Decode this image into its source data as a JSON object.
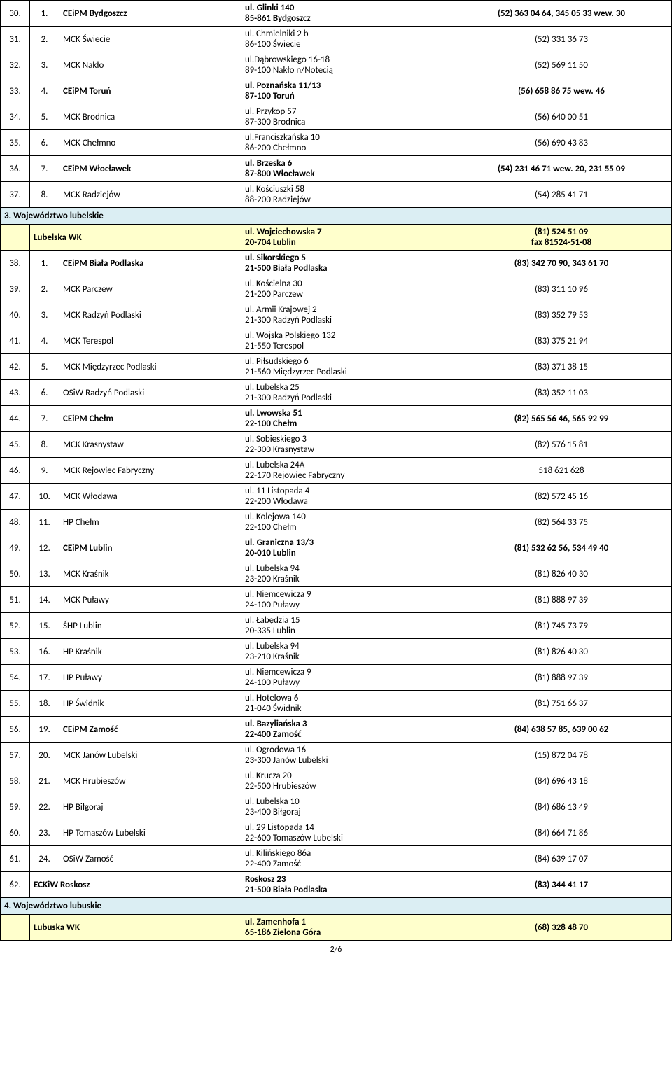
{
  "colors": {
    "section_bg": "#dbeef3",
    "wk_bg": "#ffffcc",
    "border": "#000000",
    "text": "#000000",
    "background": "#ffffff"
  },
  "fontsize": 13,
  "rows_top": [
    {
      "a": "30.",
      "b": "1.",
      "c": "CEiPM Bydgoszcz",
      "d1": "ul. Glinki 140",
      "d2": "85-861 Bydgoszcz",
      "e": "(52) 363 04 64, 345 05 33 wew. 30",
      "bold": true
    },
    {
      "a": "31.",
      "b": "2.",
      "c": "MCK Świecie",
      "d1": "ul. Chmielniki 2 b",
      "d2": "86-100 Świecie",
      "e": "(52) 331 36 73",
      "bold": false
    },
    {
      "a": "32.",
      "b": "3.",
      "c": "MCK Nakło",
      "d1": "ul.Dąbrowskiego 16-18",
      "d2": "89-100 Nakło n/Notecią",
      "e": "(52) 569 11 50",
      "bold": false
    },
    {
      "a": "33.",
      "b": "4.",
      "c": "CEiPM Toruń",
      "d1": "ul. Poznańska 11/13",
      "d2": "87-100 Toruń",
      "e": "(56) 658 86 75 wew. 46",
      "bold": true
    },
    {
      "a": "34.",
      "b": "5.",
      "c": "MCK Brodnica",
      "d1": "ul. Przykop 57",
      "d2": "87-300 Brodnica",
      "e": "(56) 640 00 51",
      "bold": false
    },
    {
      "a": "35.",
      "b": "6.",
      "c": "MCK Chełmno",
      "d1": "ul.Franciszkańska 10",
      "d2": "86-200 Chełmno",
      "e": "(56) 690 43 83",
      "bold": false
    },
    {
      "a": "36.",
      "b": "7.",
      "c": "CEiPM Włocławek",
      "d1": "ul. Brzeska 6",
      "d2": "87-800 Włocławek",
      "e": "(54) 231 46 71 wew. 20, 231 55 09",
      "bold": true
    },
    {
      "a": "37.",
      "b": "8.",
      "c": "MCK Radziejów",
      "d1": "ul. Kościuszki 58",
      "d2": "88-200 Radziejów",
      "e": "(54) 285 41 71",
      "bold": false
    }
  ],
  "section3": {
    "title": "3. Województwo lubelskie",
    "wk": {
      "c": "Lubelska WK",
      "d1": "ul. Wojciechowska 7",
      "d2": "20-704 Lublin",
      "e1": "(81) 524 51 09",
      "e2": "fax 81524-51-08"
    },
    "rows": [
      {
        "a": "38.",
        "b": "1.",
        "c": "CEiPM Biała Podlaska",
        "d1": "ul. Sikorskiego 5",
        "d2": "21-500 Biała Podlaska",
        "e": "(83) 342 70 90, 343 61 70",
        "bold": true
      },
      {
        "a": "39.",
        "b": "2.",
        "c": "MCK Parczew",
        "d1": "ul. Kościelna 30",
        "d2": "21-200 Parczew",
        "e": "(83)  311 10 96",
        "bold": false
      },
      {
        "a": "40.",
        "b": "3.",
        "c": "MCK Radzyń Podlaski",
        "d1": "ul. Armii Krajowej 2",
        "d2": "21-300 Radzyń Podlaski",
        "e": "(83) 352 79 53",
        "bold": false
      },
      {
        "a": "41.",
        "b": "4.",
        "c": "MCK Terespol",
        "d1": "ul. Wojska Polskiego 132",
        "d2": "21-550 Terespol",
        "e": "(83) 375 21 94",
        "bold": false
      },
      {
        "a": "42.",
        "b": "5.",
        "c": "MCK Międzyrzec Podlaski",
        "d1": "ul. Piłsudskiego 6",
        "d2": "21-560 Międzyrzec Podlaski",
        "e": "(83) 371 38 15",
        "bold": false
      },
      {
        "a": "43.",
        "b": "6.",
        "c": "OSiW Radzyń Podlaski",
        "d1": "ul. Lubelska 25",
        "d2": "21-300 Radzyń Podlaski",
        "e": "(83) 352 11 03",
        "bold": false
      },
      {
        "a": "44.",
        "b": "7.",
        "c": "CEiPM Chełm",
        "d1": "ul. Lwowska 51",
        "d2": "22-100 Chełm",
        "e": "(82) 565 56 46, 565 92 99",
        "bold": true
      },
      {
        "a": "45.",
        "b": "8.",
        "c": "MCK Krasnystaw",
        "d1": "ul. Sobieskiego 3",
        "d2": "22-300 Krasnystaw",
        "e": "(82) 576 15 81",
        "bold": false
      },
      {
        "a": "46.",
        "b": "9.",
        "c": "MCK Rejowiec Fabryczny",
        "d1": "ul. Lubelska 24A",
        "d2": "22-170 Rejowiec Fabryczny",
        "e": "518 621 628",
        "bold": false
      },
      {
        "a": "47.",
        "b": "10.",
        "c": "MCK Włodawa",
        "d1": "ul. 11 Listopada 4",
        "d2": "22-200 Włodawa",
        "e": "(82) 572 45 16",
        "bold": false
      },
      {
        "a": "48.",
        "b": "11.",
        "c": "HP Chełm",
        "d1": "ul. Kolejowa 140",
        "d2": "22-100 Chełm",
        "e": "(82) 564 33 75",
        "bold": false
      },
      {
        "a": "49.",
        "b": "12.",
        "c": "CEiPM Lublin",
        "d1": "ul. Graniczna 13/3",
        "d2": "20-010 Lublin",
        "e": "(81) 532 62 56, 534 49 40",
        "bold": true
      },
      {
        "a": "50.",
        "b": "13.",
        "c": "MCK Kraśnik",
        "d1": "ul. Lubelska 94",
        "d2": "23-200 Kraśnik",
        "e": "(81) 826 40 30",
        "bold": false
      },
      {
        "a": "51.",
        "b": "14.",
        "c": "MCK Puławy",
        "d1": "ul. Niemcewicza 9",
        "d2": "24-100 Puławy",
        "e": "(81) 888 97 39",
        "bold": false
      },
      {
        "a": "52.",
        "b": "15.",
        "c": "ŚHP Lublin",
        "d1": "ul. Łabędzia 15",
        "d2": "20-335 Lublin",
        "e": "(81) 745 73 79",
        "bold": false
      },
      {
        "a": "53.",
        "b": "16.",
        "c": "HP Kraśnik",
        "d1": "ul. Lubelska 94",
        "d2": "23-210 Kraśnik",
        "e": "(81) 826 40 30",
        "bold": false
      },
      {
        "a": "54.",
        "b": "17.",
        "c": "HP Puławy",
        "d1": "ul. Niemcewicza 9",
        "d2": "24-100 Puławy",
        "e": "(81) 888 97 39",
        "bold": false
      },
      {
        "a": "55.",
        "b": "18.",
        "c": "HP Świdnik",
        "d1": "ul. Hotelowa 6",
        "d2": "21-040 Świdnik",
        "e": "(81) 751 66 37",
        "bold": false
      },
      {
        "a": "56.",
        "b": "19.",
        "c": "CEiPM Zamość",
        "d1": "ul. Bazyliańska 3",
        "d2": "22-400 Zamość",
        "e": "(84) 638 57 85, 639 00 62",
        "bold": true
      },
      {
        "a": "57.",
        "b": "20.",
        "c": "MCK Janów Lubelski",
        "d1": "ul. Ogrodowa 16",
        "d2": "23-300 Janów Lubelski",
        "e": "(15) 872 04 78",
        "bold": false
      },
      {
        "a": "58.",
        "b": "21.",
        "c": "MCK Hrubieszów",
        "d1": "ul. Krucza 20",
        "d2": "22-500 Hrubieszów",
        "e": "(84) 696 43 18",
        "bold": false
      },
      {
        "a": "59.",
        "b": "22.",
        "c": "HP Biłgoraj",
        "d1": "ul. Lubelska 10",
        "d2": "23-400 Biłgoraj",
        "e": "(84) 686 13 49",
        "bold": false
      },
      {
        "a": "60.",
        "b": "23.",
        "c": "HP Tomaszów Lubelski",
        "d1": "ul. 29 Listopada 14",
        "d2": "22-600 Tomaszów Lubelski",
        "e": "(84) 664 71 86",
        "bold": false
      },
      {
        "a": "61.",
        "b": "24.",
        "c": "OSiW Zamość",
        "d1": "ul. Kilińskiego 86a",
        "d2": "22-400 Zamość",
        "e": "(84) 639 17 07",
        "bold": false
      }
    ],
    "eckiw": {
      "a": "62.",
      "c": "ECKiW Roskosz",
      "d1": "Roskosz 23",
      "d2": "21-500 Biała Podlaska",
      "e": "(83) 344 41 17"
    }
  },
  "section4": {
    "title": "4. Województwo lubuskie",
    "wk": {
      "c": "Lubuska WK",
      "d1": "ul. Zamenhofa 1",
      "d2": "65-186 Zielona Góra",
      "e": "(68) 328 48 70"
    }
  },
  "page": "2/6"
}
